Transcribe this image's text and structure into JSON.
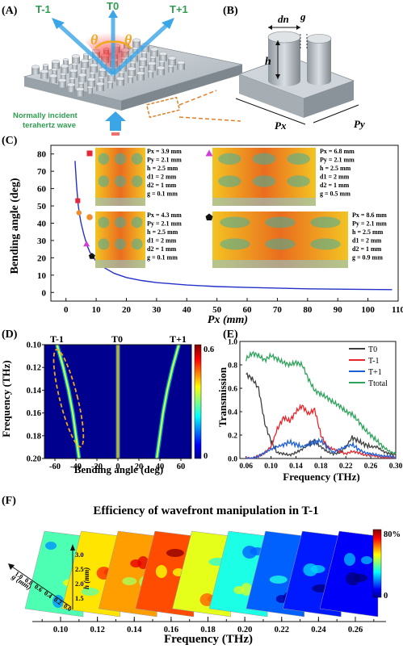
{
  "panels": {
    "A": {
      "label": "(A)",
      "orders": [
        "T-1",
        "T0",
        "T+1"
      ],
      "theta": "θ",
      "incident_text": [
        "Normally incident",
        "terahertz wave"
      ]
    },
    "B": {
      "label": "(B)",
      "dn": "dn",
      "g": "g",
      "h": "h",
      "px": "Px",
      "py": "Py"
    },
    "C": {
      "label": "(C)",
      "ylabel": "Bending angle (deg)",
      "xlabel": "Px (mm)",
      "insets": [
        {
          "marker": "square",
          "color": "#e8263a",
          "params": [
            "Px = 3.9 mm",
            "Py = 2.1 mm",
            "h = 2.5 mm",
            "d1 = 2 mm",
            "d2 = 1 mm",
            "g = 0.1 mm"
          ]
        },
        {
          "marker": "triangle",
          "color": "#d23cd9",
          "params": [
            "Px = 6.8 mm",
            "Py = 2.1 mm",
            "h = 2.5 mm",
            "d1 = 2 mm",
            "d2 = 1 mm",
            "g = 0.5 mm"
          ]
        },
        {
          "marker": "circle",
          "color": "#f08c2b",
          "params": [
            "Px = 4.3 mm",
            "Py = 2.1 mm",
            "h = 2.5 mm",
            "d1 = 2 mm",
            "d2 = 1 mm",
            "g = 0.1 mm"
          ]
        },
        {
          "marker": "pentagon",
          "color": "#111111",
          "params": [
            "Px = 8.6 mm",
            "Py = 2.1 mm",
            "h = 2.5 mm",
            "d1 = 2 mm",
            "d2 = 1 mm",
            "g = 0.9 mm"
          ]
        }
      ]
    },
    "D": {
      "label": "(D)",
      "ylabel": "Frequency (THz)",
      "xlabel": "Bending angle (deg)",
      "orders": [
        "T-1",
        "T0",
        "T+1"
      ],
      "colorbar_max": "0.6",
      "colorbar_min": "0"
    },
    "E": {
      "label": "(E)",
      "ylabel": "Transmission",
      "xlabel": "Frequency (THz)"
    },
    "F": {
      "label": "(F)",
      "title": "Efficiency of wavefront manipulation in T-1",
      "xlabel": "Frequency (THz)",
      "colorbar_max": "80%",
      "colorbar_min": "0",
      "h_axis_label": "h (mm)",
      "g_axis_label": "g (mm)",
      "h_ticks": [
        "3.0",
        "2.5",
        "2.0",
        "1.5"
      ],
      "g_ticks": [
        "1.0",
        "0.8",
        "0.6",
        "0.4",
        "0.2",
        "0.0"
      ]
    }
  },
  "chart_data": [
    {
      "type": "line",
      "panel": "C",
      "xlabel": "Px (mm)",
      "ylabel": "Bending angle (deg)",
      "xlim": [
        -5,
        110
      ],
      "ylim": [
        -5,
        85
      ],
      "xticks": [
        0,
        10,
        20,
        30,
        40,
        50,
        60,
        70,
        80,
        90,
        100,
        110
      ],
      "yticks": [
        0,
        10,
        20,
        30,
        40,
        50,
        60,
        70,
        80
      ],
      "series": [
        {
          "x": [
            3.0,
            3.2,
            3.5,
            4.0,
            4.5,
            5,
            6,
            7,
            8,
            10,
            13,
            16,
            20,
            25,
            30,
            40,
            50,
            60,
            70,
            80,
            90,
            100,
            108
          ],
          "y": [
            76,
            70,
            62,
            51,
            45,
            40,
            33,
            27,
            23,
            18,
            14,
            11,
            8.6,
            6.9,
            5.7,
            4.3,
            3.4,
            2.9,
            2.5,
            2.1,
            1.9,
            1.7,
            1.6
          ]
        }
      ],
      "points": [
        {
          "x": 3.9,
          "y": 53,
          "marker": "square",
          "color": "#e8263a"
        },
        {
          "x": 4.3,
          "y": 46,
          "marker": "circle",
          "color": "#f08c2b"
        },
        {
          "x": 6.8,
          "y": 28,
          "marker": "triangle",
          "color": "#d23cd9"
        },
        {
          "x": 8.6,
          "y": 21,
          "marker": "pentagon",
          "color": "#111111"
        }
      ]
    },
    {
      "type": "heatmap",
      "panel": "D",
      "xlabel": "Bending angle (deg)",
      "ylabel": "Frequency (THz)",
      "xlim": [
        -70,
        70
      ],
      "ylim": [
        0.1,
        0.2
      ],
      "xticks": [
        -60,
        -40,
        -20,
        0,
        20,
        40,
        60
      ],
      "yticks": [
        0.1,
        0.12,
        0.14,
        0.16,
        0.18,
        0.2
      ],
      "colorbar": [
        0,
        0.6
      ],
      "ridges": [
        {
          "name": "T-1",
          "freq": [
            0.1,
            0.12,
            0.14,
            0.16,
            0.18,
            0.2
          ],
          "angle": [
            -58,
            -52,
            -47,
            -43,
            -40,
            -37
          ]
        },
        {
          "name": "T0",
          "freq": [
            0.1,
            0.2
          ],
          "angle": [
            0,
            0
          ]
        },
        {
          "name": "T+1",
          "freq": [
            0.1,
            0.12,
            0.14,
            0.16,
            0.18,
            0.2
          ],
          "angle": [
            58,
            52,
            47,
            43,
            40,
            37
          ]
        }
      ]
    },
    {
      "type": "line",
      "panel": "E",
      "xlabel": "Frequency (THz)",
      "ylabel": "Transmission",
      "xlim": [
        0.05,
        0.3
      ],
      "ylim": [
        0,
        1.0
      ],
      "xticks": [
        0.06,
        0.1,
        0.14,
        0.18,
        0.22,
        0.26,
        0.3
      ],
      "xticklabels": [
        "0.06",
        "0.10",
        "0.14",
        "0.18",
        "0.22",
        "0.26",
        "0.30"
      ],
      "yticks": [
        0,
        0.2,
        0.4,
        0.6,
        0.8,
        1.0
      ],
      "yticklabels": [
        "0.0",
        "0.2",
        "0.4",
        "0.6",
        "0.8",
        "1.0"
      ],
      "legend": "top-right",
      "x": [
        0.06,
        0.07,
        0.08,
        0.09,
        0.1,
        0.11,
        0.12,
        0.13,
        0.14,
        0.15,
        0.16,
        0.17,
        0.18,
        0.19,
        0.2,
        0.21,
        0.22,
        0.23,
        0.24,
        0.25,
        0.26,
        0.27,
        0.28,
        0.29,
        0.3
      ],
      "series": [
        {
          "name": "T0",
          "color": "#404040",
          "values": [
            0.72,
            0.68,
            0.6,
            0.3,
            0.15,
            0.05,
            0.04,
            0.03,
            0.05,
            0.08,
            0.12,
            0.15,
            0.1,
            0.06,
            0.04,
            0.05,
            0.1,
            0.18,
            0.15,
            0.12,
            0.1,
            0.1,
            0.06,
            0.04,
            0.03
          ]
        },
        {
          "name": "T-1",
          "color": "#e8262a",
          "values": [
            0.0,
            0.0,
            0.02,
            0.05,
            0.1,
            0.25,
            0.35,
            0.32,
            0.4,
            0.45,
            0.38,
            0.42,
            0.2,
            0.1,
            0.08,
            0.06,
            0.04,
            0.06,
            0.05,
            0.03,
            0.03,
            0.02,
            0.01,
            0.01,
            0.01
          ]
        },
        {
          "name": "T+1",
          "color": "#1e5fd6",
          "values": [
            0.0,
            0.0,
            0.02,
            0.05,
            0.08,
            0.1,
            0.12,
            0.14,
            0.12,
            0.1,
            0.12,
            0.14,
            0.15,
            0.1,
            0.05,
            0.08,
            0.1,
            0.12,
            0.08,
            0.05,
            0.04,
            0.03,
            0.02,
            0.02,
            0.01
          ]
        },
        {
          "name": "Ttotal",
          "color": "#2ea35a",
          "values": [
            0.85,
            0.9,
            0.88,
            0.84,
            0.88,
            0.85,
            0.82,
            0.8,
            0.82,
            0.8,
            0.68,
            0.58,
            0.55,
            0.52,
            0.48,
            0.45,
            0.4,
            0.38,
            0.32,
            0.25,
            0.2,
            0.15,
            0.1,
            0.06,
            0.04
          ]
        }
      ]
    },
    {
      "type": "heatmap",
      "panel": "F",
      "xlabel": "Frequency (THz)",
      "xticks": [
        0.1,
        0.12,
        0.14,
        0.16,
        0.18,
        0.2,
        0.22,
        0.24,
        0.26
      ],
      "colorbar": [
        0,
        80
      ],
      "slice_levels": [
        0.45,
        0.65,
        0.72,
        0.8,
        0.6,
        0.4,
        0.22,
        0.15,
        0.12
      ]
    }
  ]
}
